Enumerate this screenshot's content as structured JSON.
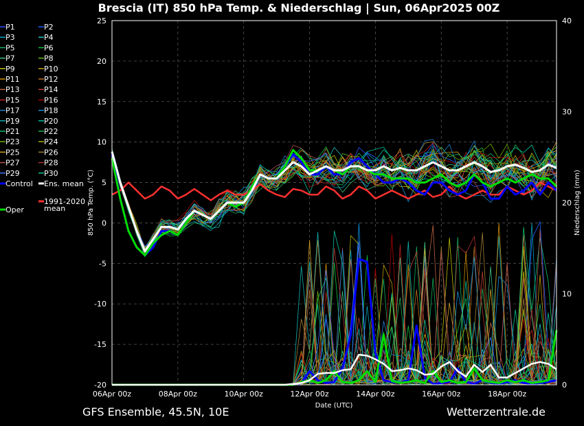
{
  "chart_data": {
    "type": "line",
    "title": "Brescia  (IT)  850 hPa Temp. & Niederschlag | Sun, 06Apr2025 00Z",
    "xlabel": "Date (UTC)",
    "ylabel_left": "850 hPa Temp. (°C)",
    "ylabel_right": "Niederschlag (mm)",
    "ylim_left": [
      -20,
      25
    ],
    "ylim_right": [
      0,
      40
    ],
    "yticks_left": [
      "25",
      "20",
      "15",
      "10",
      "5",
      "0",
      "-5",
      "-10",
      "-15",
      "-20"
    ],
    "yticks_right": [
      "40",
      "30",
      "20",
      "10",
      "0"
    ],
    "xticks": [
      "06Apr 00z",
      "08Apr 00z",
      "10Apr 00z",
      "12Apr 00z",
      "14Apr 00z",
      "16Apr 00z",
      "18Apr 00z"
    ],
    "grid": true,
    "legend_placement": "left",
    "footer_left": "GFS Ensemble, 45.5N, 10E",
    "footer_right": "Wetterzentrale.de",
    "x_hours_step": 6,
    "x_hours_max": 324,
    "ens_mean_temp": [
      8.8,
      5,
      2,
      -1,
      -3.5,
      -2,
      -0.5,
      -0.5,
      -0.8,
      0.5,
      1.5,
      1,
      0.5,
      1.5,
      2.5,
      2.5,
      2.5,
      4,
      6,
      5.5,
      5.5,
      6.5,
      7.5,
      7,
      6,
      6.5,
      7,
      6.5,
      6.5,
      7,
      7,
      6.5,
      6.5,
      7,
      6.5,
      6.8,
      6.5,
      6.5,
      7,
      7.5,
      7,
      6.5,
      6.5,
      7,
      7.5,
      7,
      6.3,
      6.5,
      7,
      7.2,
      6.8,
      6.3,
      6.5,
      7.2,
      6.8
    ],
    "ens_mean_precip": [
      0,
      0,
      0,
      0,
      0,
      0,
      0,
      0,
      0,
      0,
      0,
      0,
      0,
      0,
      0,
      0,
      0,
      0,
      0,
      0,
      0,
      0,
      0.1,
      0.2,
      0.5,
      1.2,
      1.3,
      1.3,
      1.6,
      1.7,
      3.3,
      3.2,
      2.8,
      2.3,
      1.5,
      1.6,
      1.8,
      1.6,
      1.1,
      1.2,
      2.0,
      2.5,
      1.5,
      0.9,
      2.2,
      1.4,
      2.2,
      0.8,
      0.8,
      1.3,
      1.8,
      2.3,
      2.5,
      2.3,
      1.7
    ],
    "control_temp": [
      8.5,
      3,
      -1,
      -3,
      -4,
      -3,
      -1,
      -1,
      -1.5,
      0,
      1.5,
      1,
      0.5,
      1.5,
      2.5,
      2,
      2.5,
      4.5,
      6,
      5.5,
      5.5,
      7,
      8.5,
      7.5,
      6,
      6,
      7,
      6,
      6,
      7.5,
      8,
      7,
      6,
      5,
      5,
      5.5,
      5,
      4,
      3.5,
      5,
      5,
      4,
      3.5,
      4,
      6,
      5,
      3,
      3,
      4.5,
      3.5,
      4,
      5,
      3.5,
      5,
      4
    ],
    "control_precip": [
      0,
      0,
      0,
      0,
      0,
      0,
      0,
      0,
      0,
      0,
      0,
      0,
      0,
      0,
      0,
      0,
      0,
      0,
      0,
      0,
      0,
      0,
      0,
      0.2,
      1.5,
      0.5,
      0.2,
      0.3,
      1.8,
      5.5,
      13.8,
      13.5,
      3.5,
      0.5,
      0.3,
      0.2,
      0.5,
      6.5,
      0.8,
      0.1,
      0.2,
      0.3,
      1.8,
      0.3,
      0.1,
      0.5,
      0.2,
      0.1,
      0.3,
      0.5,
      0.2,
      0.1,
      0.2,
      0.3,
      0.5
    ],
    "oper_temp": [
      8,
      3,
      -1,
      -3,
      -4,
      -2.5,
      -1.5,
      -1,
      -1.5,
      0,
      1.5,
      1,
      0.5,
      1.5,
      2.5,
      2,
      2.5,
      4.5,
      6,
      5.5,
      5.5,
      7,
      9,
      8,
      6.5,
      6.5,
      7,
      6.5,
      6,
      7,
      7,
      6.5,
      6,
      6,
      5.5,
      5.5,
      5.5,
      5,
      5,
      5.5,
      6,
      5,
      4.5,
      5,
      6,
      5,
      4.5,
      5,
      5.5,
      5,
      5.5,
      6,
      5.5,
      5.5,
      4.5
    ],
    "oper_precip": [
      0,
      0,
      0,
      0,
      0,
      0,
      0,
      0,
      0,
      0,
      0,
      0,
      0,
      0,
      0,
      0,
      0,
      0,
      0,
      0,
      0,
      0,
      0,
      0.3,
      0.5,
      0.2,
      0.5,
      1.5,
      0.3,
      0.2,
      0.5,
      1.5,
      0.3,
      5.5,
      0.4,
      0.2,
      0.3,
      0.5,
      0.2,
      1.5,
      0.3,
      0.5,
      0.2,
      0.3,
      1.8,
      0.5,
      0.3,
      0.2,
      0.5,
      0.3,
      0.5,
      0.2,
      0.3,
      0.5,
      6
    ],
    "clim_mean_temp": [
      3.5,
      4,
      5,
      4,
      3,
      3.5,
      4.5,
      4,
      3,
      3.5,
      4.2,
      3.5,
      2.8,
      3.5,
      4,
      3.5,
      3.5,
      4,
      4.8,
      4,
      3.5,
      3.2,
      4.2,
      4,
      3.5,
      3.5,
      4.5,
      4,
      3,
      3.5,
      4.5,
      4,
      3,
      3.5,
      4,
      3.5,
      3,
      3.5,
      4,
      3.2,
      3.5,
      4.5,
      3.5,
      3,
      3.5,
      4,
      3.5,
      3.5,
      4.5,
      4,
      3.5,
      4,
      5,
      4.5,
      4
    ]
  },
  "legend": {
    "members_col1": [
      "P1",
      "P3",
      "P5",
      "P7",
      "P9",
      "P11",
      "P13",
      "P15",
      "P17",
      "P19",
      "P21",
      "P23",
      "P25",
      "P27",
      "P29"
    ],
    "members_col2": [
      "P2",
      "P4",
      "P6",
      "P8",
      "P10",
      "P12",
      "P14",
      "P16",
      "P18",
      "P20",
      "P22",
      "P24",
      "P26",
      "P28",
      "P30"
    ],
    "control": "Control",
    "ens_mean": "Ens. mean",
    "oper": "Oper",
    "clim_line1": "1991-2020",
    "clim_line2": "mean"
  },
  "colors": {
    "members": [
      "#3050ff",
      "#2060ff",
      "#00a0c0",
      "#20c0c0",
      "#10b060",
      "#10c040",
      "#40c080",
      "#60c020",
      "#c0c000",
      "#c0a000",
      "#d09000",
      "#c07020",
      "#c06040",
      "#c04030",
      "#c02020",
      "#b00000",
      "#2080d0",
      "#1090e0",
      "#10b0b0",
      "#00c0a0",
      "#10c070",
      "#20b050",
      "#70b000",
      "#b0b000",
      "#d0a020",
      "#a08030",
      "#b05050",
      "#b03030",
      "#4070ff",
      "#00c090"
    ],
    "control": "#0000ff",
    "oper": "#00dd00",
    "ens_mean": "#ffffff",
    "clim": "#ff3030",
    "grid": "#555555"
  }
}
